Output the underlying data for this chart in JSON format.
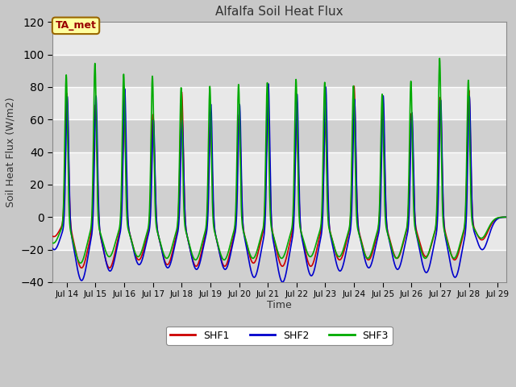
{
  "title": "Alfalfa Soil Heat Flux",
  "ylabel": "Soil Heat Flux (W/m2)",
  "xlabel": "Time",
  "xlim_days": [
    13.5,
    29.3
  ],
  "ylim": [
    -40,
    120
  ],
  "yticks": [
    -40,
    -20,
    0,
    20,
    40,
    60,
    80,
    100,
    120
  ],
  "xtick_labels": [
    "Jul 14",
    "Jul 15",
    "Jul 16",
    "Jul 17",
    "Jul 18",
    "Jul 19",
    "Jul 20",
    "Jul 21",
    "Jul 22",
    "Jul 23",
    "Jul 24",
    "Jul 25",
    "Jul 26",
    "Jul 27",
    "Jul 28",
    "Jul 29"
  ],
  "xtick_positions": [
    14,
    15,
    16,
    17,
    18,
    19,
    20,
    21,
    22,
    23,
    24,
    25,
    26,
    27,
    28,
    29
  ],
  "shf1_color": "#cc0000",
  "shf2_color": "#0000cc",
  "shf3_color": "#00aa00",
  "fig_bg_color": "#c8c8c8",
  "plot_bg_color": "#e8e8e8",
  "legend_labels": [
    "SHF1",
    "SHF2",
    "SHF3"
  ],
  "annotation_text": "TA_met",
  "annotation_box_color": "#ffffa0",
  "annotation_box_edge": "#996600",
  "grid_color": "#ffffff",
  "linewidth": 1.2,
  "n_points": 5000,
  "start_day": 13.5,
  "end_day": 29.3
}
